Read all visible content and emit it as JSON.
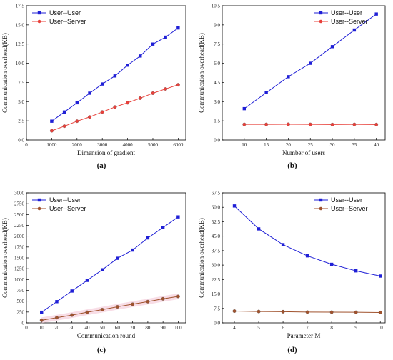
{
  "captions": [
    "(a)",
    "(b)",
    "(c)",
    "(d)"
  ],
  "chart_data": [
    {
      "type": "line",
      "xlabel": "Dimension of gradient",
      "ylabel": "Communication overhead(KB)",
      "xlim": [
        0,
        6300
      ],
      "ylim": [
        0,
        17.5
      ],
      "xticks": [
        0,
        1000,
        2000,
        3000,
        4000,
        5000,
        6000
      ],
      "yticks": [
        0.0,
        2.5,
        5.0,
        7.5,
        10.0,
        12.5,
        15.0,
        17.5
      ],
      "ytick_labels": [
        "0.0",
        "2.5",
        "5.0",
        "7.5",
        "10.0",
        "12.5",
        "15.0",
        "17.5"
      ],
      "x": [
        1000,
        1500,
        2000,
        2500,
        3000,
        3500,
        4000,
        4500,
        5000,
        5500,
        6000
      ],
      "series": [
        {
          "name": "User--User",
          "color": "#1f1fd6",
          "marker": "square",
          "values": [
            2.45,
            3.65,
            4.85,
            6.1,
            7.3,
            8.35,
            9.75,
            10.95,
            12.5,
            13.4,
            14.6
          ]
        },
        {
          "name": "User--Server",
          "color": "#e8403a",
          "marker": "circle",
          "values": [
            1.2,
            1.8,
            2.45,
            3.0,
            3.65,
            4.3,
            4.85,
            5.45,
            6.1,
            6.65,
            7.2
          ]
        }
      ],
      "legend": "top-left"
    },
    {
      "type": "line",
      "xlabel": "Number of users",
      "ylabel": "Communication overhead(KB)",
      "xlim": [
        5,
        42
      ],
      "ylim": [
        0,
        10.5
      ],
      "xticks": [
        10,
        15,
        20,
        25,
        30,
        35,
        40
      ],
      "yticks": [
        0.0,
        1.5,
        3.0,
        4.5,
        6.0,
        7.5,
        9.0,
        10.5
      ],
      "ytick_labels": [
        "0.0",
        "1.5",
        "3.0",
        "4.5",
        "6.0",
        "7.5",
        "9.0",
        "10.5"
      ],
      "x": [
        10,
        15,
        20,
        25,
        30,
        35,
        40
      ],
      "series": [
        {
          "name": "User--User",
          "color": "#1f1fd6",
          "marker": "square",
          "values": [
            2.45,
            3.7,
            4.95,
            6.0,
            7.3,
            8.6,
            9.85
          ]
        },
        {
          "name": "User--Server",
          "color": "#e8403a",
          "marker": "circle",
          "values": [
            1.22,
            1.22,
            1.23,
            1.22,
            1.21,
            1.22,
            1.21
          ]
        }
      ],
      "legend": "top-right"
    },
    {
      "type": "line",
      "xlabel": "Communication round",
      "ylabel": "Communication overhead(KB)",
      "xlim": [
        0,
        105
      ],
      "ylim": [
        0,
        3000
      ],
      "xticks": [
        0,
        10,
        20,
        30,
        40,
        50,
        60,
        70,
        80,
        90,
        100
      ],
      "yticks": [
        0,
        250,
        500,
        750,
        1000,
        1250,
        1500,
        1750,
        2000,
        2250,
        2500,
        2750,
        3000
      ],
      "ytick_labels": [
        "0",
        "250",
        "500",
        "750",
        "1000",
        "1250",
        "1500",
        "1750",
        "2000",
        "2250",
        "2500",
        "2750",
        "3000"
      ],
      "x": [
        10,
        20,
        30,
        40,
        50,
        60,
        70,
        80,
        90,
        100
      ],
      "series": [
        {
          "name": "User--User",
          "color": "#1f1fd6",
          "marker": "square",
          "values": [
            245,
            490,
            735,
            980,
            1225,
            1490,
            1680,
            1960,
            2200,
            2445
          ]
        },
        {
          "name": "User--Server",
          "color": "#a0522d",
          "marker": "circle",
          "values": [
            60,
            120,
            180,
            245,
            305,
            370,
            430,
            490,
            555,
            610
          ]
        }
      ],
      "legend": "top-left"
    },
    {
      "type": "line",
      "xlabel": "Parameter M",
      "ylabel": "Communication overhead(KB)",
      "xlim": [
        3.5,
        10.2
      ],
      "ylim": [
        0,
        67.5
      ],
      "xticks": [
        4,
        5,
        6,
        7,
        8,
        9,
        10
      ],
      "yticks": [
        0.0,
        7.5,
        15.0,
        22.5,
        30.0,
        37.5,
        45.0,
        52.5,
        60.0,
        67.5
      ],
      "ytick_labels": [
        "0.0",
        "7.5",
        "15.0",
        "22.5",
        "30.0",
        "37.5",
        "45.0",
        "52.5",
        "60.0",
        "67.5"
      ],
      "x": [
        4,
        5,
        6,
        7,
        8,
        9,
        10
      ],
      "series": [
        {
          "name": "User--User",
          "color": "#1f1fd6",
          "marker": "square",
          "values": [
            60.7,
            48.8,
            40.6,
            34.8,
            30.4,
            27.0,
            24.3
          ]
        },
        {
          "name": "User--Server",
          "color": "#a0522d",
          "marker": "circle",
          "values": [
            6.1,
            5.9,
            5.8,
            5.6,
            5.55,
            5.5,
            5.4
          ]
        }
      ],
      "legend": "top-right"
    }
  ]
}
